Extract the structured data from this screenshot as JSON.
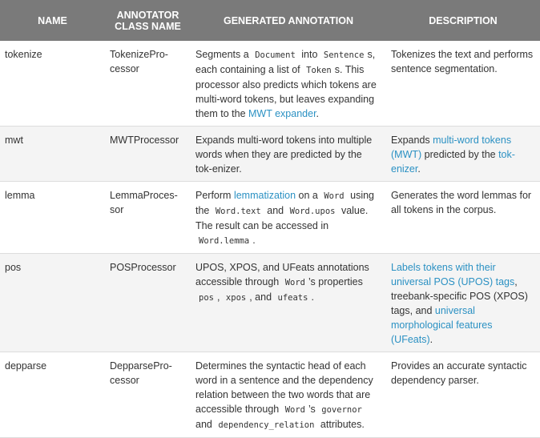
{
  "headers": {
    "name": "NAME",
    "annotator_line1": "ANNOTATOR",
    "annotator_line2": "CLASS NAME",
    "generated": "GENERATED ANNOTATION",
    "description": "DESCRIPTION"
  },
  "rows": [
    {
      "name": "tokenize",
      "class": [
        "TokenizePro-",
        "cessor"
      ],
      "gen": {
        "t1": "Segments a ",
        "c1": "Document",
        "t2": " into ",
        "c2": "Sentence",
        "t3": "s, each containing a list of ",
        "c3": "Token",
        "t4": "s. This processor also predicts which tokens are multi-word tokens, but leaves expanding them to the ",
        "link": "MWT expander",
        "t5": "."
      },
      "desc": {
        "t1": "Tokenizes the text and performs sentence segmentation."
      }
    },
    {
      "name": "mwt",
      "class": [
        "MWTProcessor"
      ],
      "gen": {
        "t1": "Expands multi-word tokens into multiple words when they are predicted by the tok-enizer."
      },
      "desc": {
        "t1": "Expands ",
        "link1": "multi-word tokens (MWT)",
        "t2": " predicted by the ",
        "link2": "tok-enizer",
        "t3": "."
      }
    },
    {
      "name": "lemma",
      "class": [
        "LemmaProces-",
        "sor"
      ],
      "gen": {
        "t1": "Perform ",
        "link": "lemmatization",
        "t2": " on a ",
        "c1": "Word",
        "t3": " using the ",
        "c2": "Word.text",
        "t4": " and ",
        "c3": "Word.upos",
        "t5": " value. The result can be accessed in ",
        "c4": "Word.lemma",
        "t6": "."
      },
      "desc": {
        "t1": "Generates the word lemmas for all tokens in the corpus."
      }
    },
    {
      "name": "pos",
      "class": [
        "POSProcessor"
      ],
      "gen": {
        "t1": "UPOS, XPOS, and UFeats annotations accessible through ",
        "c1": "Word",
        "t2": "’s properties ",
        "c2": "pos",
        "t3": ", ",
        "c3": "xpos",
        "t4": ", and ",
        "c4": "ufeats",
        "t5": "."
      },
      "desc": {
        "link1": "Labels tokens with their universal POS (UPOS) tags",
        "t1": ", treebank-specific POS (XPOS) tags, and ",
        "link2": "universal morphological features (UFeats)",
        "t2": "."
      }
    },
    {
      "name": "depparse",
      "class": [
        "DepparsePro-",
        "cessor"
      ],
      "gen": {
        "t1": "Determines the syntactic head of each word in a sentence and the dependency relation between the two words that are accessible through ",
        "c1": "Word",
        "t2": "’s ",
        "c2": "governor",
        "t3": " and ",
        "c3": "dependency_relation",
        "t4": " attributes."
      },
      "desc": {
        "t1": "Provides an accurate syntactic dependency parser."
      }
    }
  ],
  "colors": {
    "header_bg": "#7a7a7a",
    "link": "#2b91c3",
    "stripe": "#f4f4f4"
  }
}
